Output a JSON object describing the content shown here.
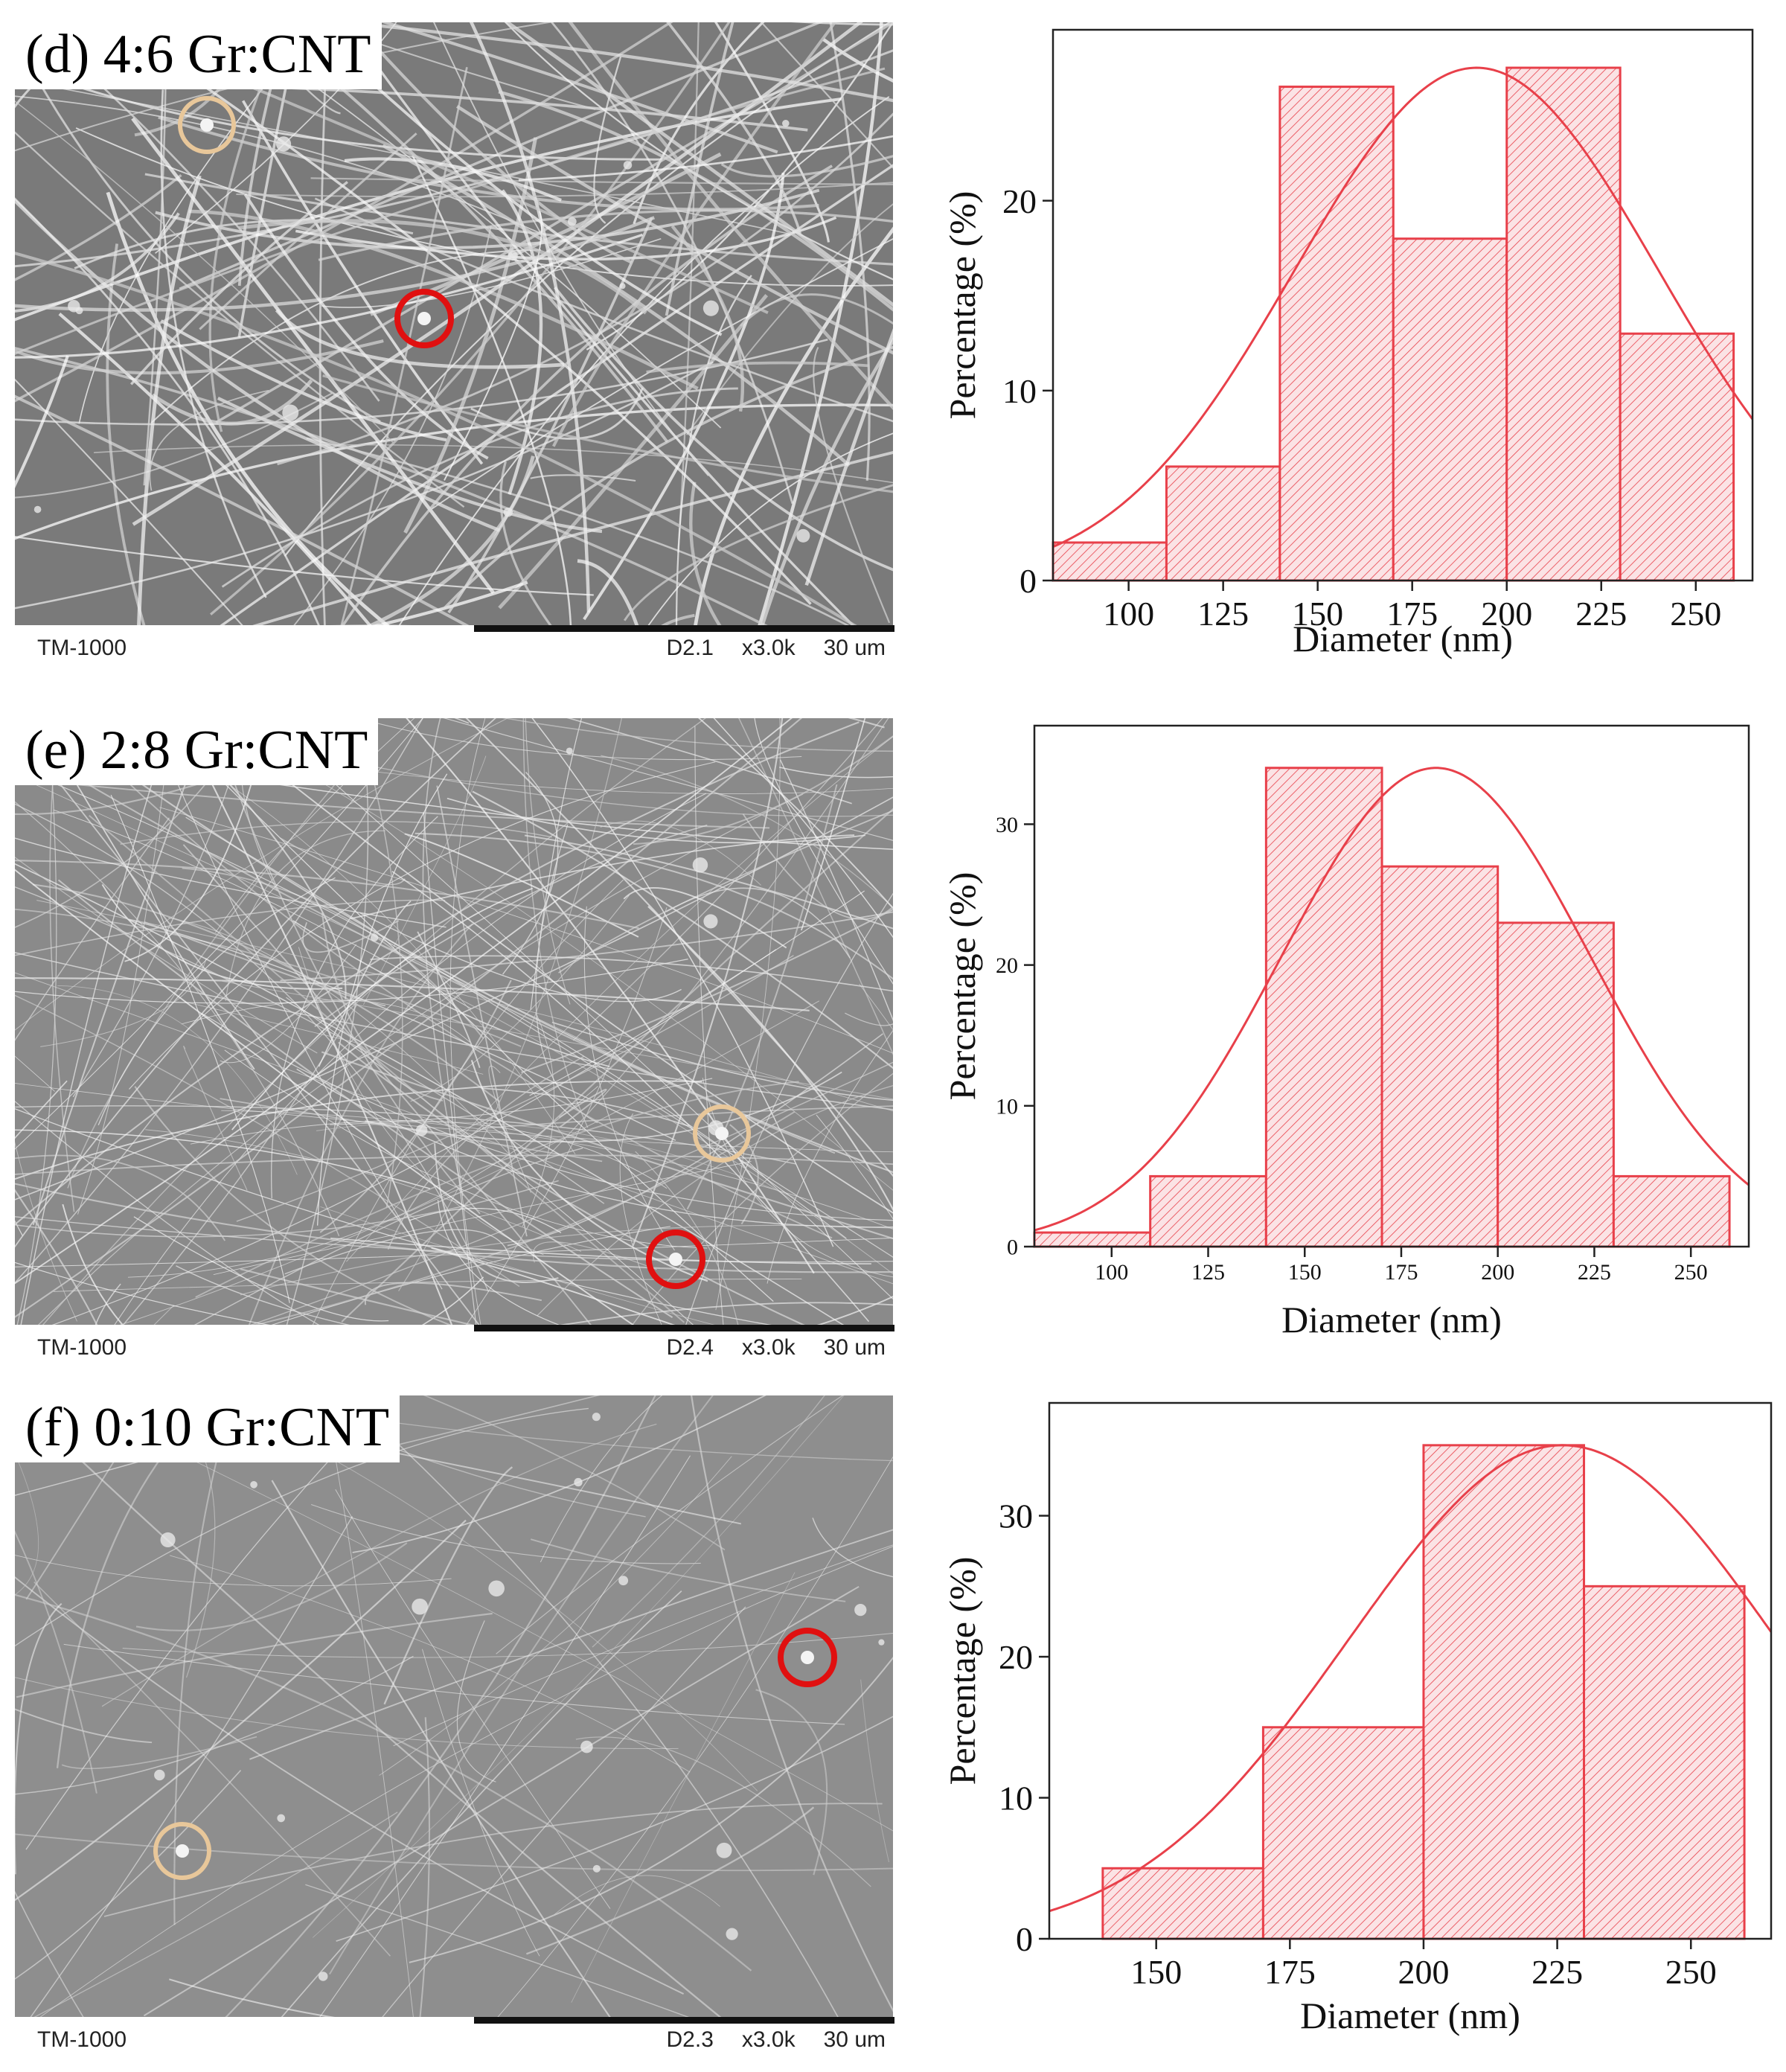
{
  "colors": {
    "bar_stroke": "#e8404a",
    "bar_fill": "#fbe3e5",
    "curve": "#e8404a",
    "marker_red": "#e01010",
    "marker_tan": "#e8c79a",
    "sem_bg": "#8c8c8c"
  },
  "panels": [
    {
      "label": "(d) 4:6 Gr:CNT",
      "footer": {
        "instrument": "TM-1000",
        "distance": "D2.1",
        "magnification": "x3.0k",
        "scale": "30 um"
      },
      "markers": [
        "tan-circle",
        "red-circle"
      ]
    },
    {
      "label": "(e) 2:8 Gr:CNT",
      "footer": {
        "instrument": "TM-1000",
        "distance": "D2.4",
        "magnification": "x3.0k",
        "scale": "30 um"
      },
      "markers": [
        "tan-circle",
        "red-circle"
      ]
    },
    {
      "label": "(f) 0:10 Gr:CNT",
      "footer": {
        "instrument": "TM-1000",
        "distance": "D2.3",
        "magnification": "x3.0k",
        "scale": "30 um"
      },
      "markers": [
        "red-circle",
        "tan-circle"
      ]
    }
  ],
  "chart_data": [
    {
      "type": "bar",
      "xlabel": "Diameter (nm)",
      "ylabel": "Percentage (%)",
      "xlim": [
        80,
        265
      ],
      "ylim": [
        0,
        29
      ],
      "xticks": [
        100,
        125,
        150,
        175,
        200,
        225,
        250
      ],
      "yticks": [
        0,
        10,
        20
      ],
      "bins": [
        {
          "from": 80,
          "to": 110,
          "value": 2
        },
        {
          "from": 110,
          "to": 140,
          "value": 6
        },
        {
          "from": 140,
          "to": 170,
          "value": 26
        },
        {
          "from": 170,
          "to": 200,
          "value": 18
        },
        {
          "from": 200,
          "to": 230,
          "value": 27
        },
        {
          "from": 230,
          "to": 260,
          "value": 13
        }
      ],
      "fit": {
        "kind": "normal",
        "mean": 192,
        "sd": 48,
        "peak": 27
      },
      "grid": false
    },
    {
      "type": "bar",
      "xlabel": "Diameter (nm)",
      "ylabel": "Percentage (%)",
      "xlim": [
        80,
        265
      ],
      "ylim": [
        0,
        37
      ],
      "xticks": [
        100,
        125,
        150,
        175,
        200,
        225,
        250
      ],
      "yticks": [
        0,
        10,
        20,
        30
      ],
      "bins": [
        {
          "from": 80,
          "to": 110,
          "value": 1
        },
        {
          "from": 110,
          "to": 140,
          "value": 5
        },
        {
          "from": 140,
          "to": 170,
          "value": 34
        },
        {
          "from": 170,
          "to": 200,
          "value": 27
        },
        {
          "from": 200,
          "to": 230,
          "value": 23
        },
        {
          "from": 230,
          "to": 260,
          "value": 5
        }
      ],
      "fit": {
        "kind": "normal",
        "mean": 184,
        "sd": 40,
        "peak": 34
      },
      "grid": false
    },
    {
      "type": "bar",
      "xlabel": "Diameter (nm)",
      "ylabel": "Percentage (%)",
      "xlim": [
        130,
        265
      ],
      "ylim": [
        0,
        38
      ],
      "xticks": [
        150,
        175,
        200,
        225,
        250
      ],
      "yticks": [
        0,
        10,
        20,
        30
      ],
      "bins": [
        {
          "from": 140,
          "to": 170,
          "value": 5
        },
        {
          "from": 170,
          "to": 200,
          "value": 15
        },
        {
          "from": 200,
          "to": 230,
          "value": 35
        },
        {
          "from": 230,
          "to": 260,
          "value": 25
        }
      ],
      "fit": {
        "kind": "normal",
        "mean": 226,
        "sd": 40,
        "peak": 35
      },
      "grid": false
    }
  ]
}
